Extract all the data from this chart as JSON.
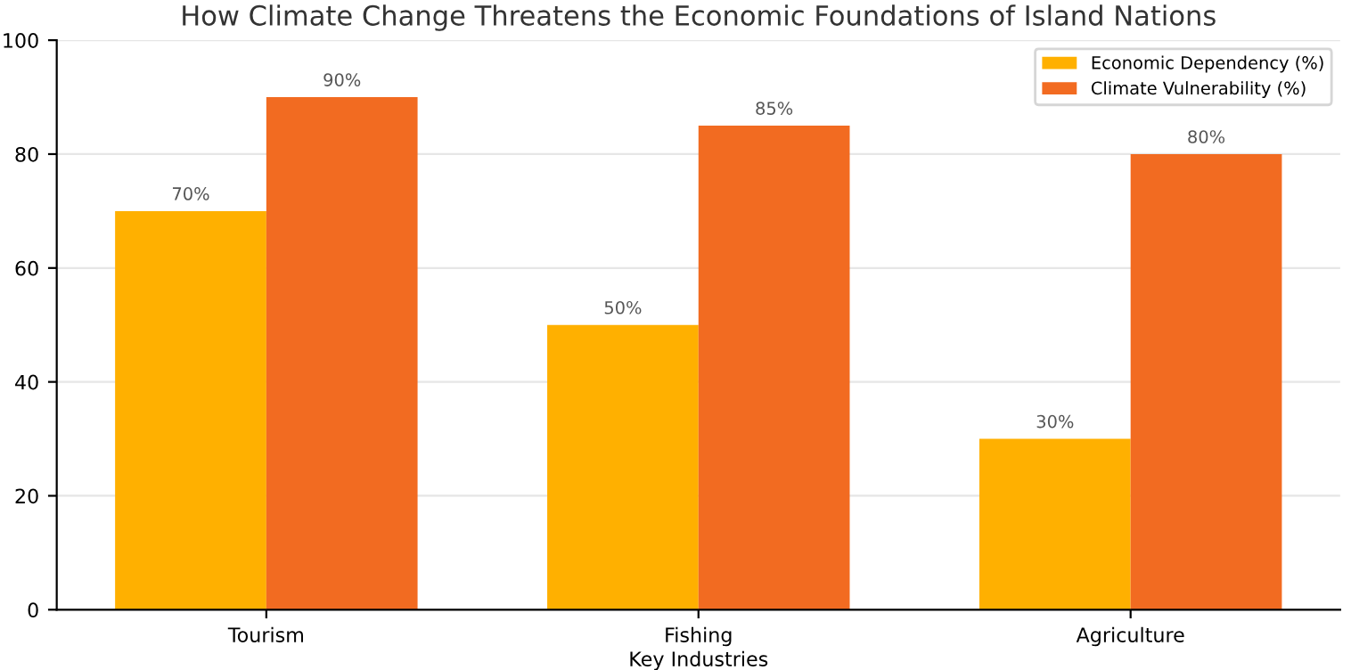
{
  "chart_data": {
    "type": "bar",
    "title": "How Climate Change Threatens the Economic Foundations of Island Nations",
    "xlabel": "Key Industries",
    "categories": [
      "Tourism",
      "Fishing",
      "Agriculture"
    ],
    "series": [
      {
        "name": "Economic Dependency (%)",
        "color": "#ffb000",
        "values": [
          70,
          50,
          30
        ],
        "value_labels": [
          "70%",
          "50%",
          "30%"
        ]
      },
      {
        "name": "Climate Vulnerability (%)",
        "color": "#f26b21",
        "values": [
          90,
          85,
          80
        ],
        "value_labels": [
          "90%",
          "85%",
          "80%"
        ]
      }
    ],
    "ylim": [
      0,
      100
    ],
    "yticks": [
      0,
      20,
      40,
      60,
      80,
      100
    ],
    "grid": "y",
    "legend": "top right"
  }
}
